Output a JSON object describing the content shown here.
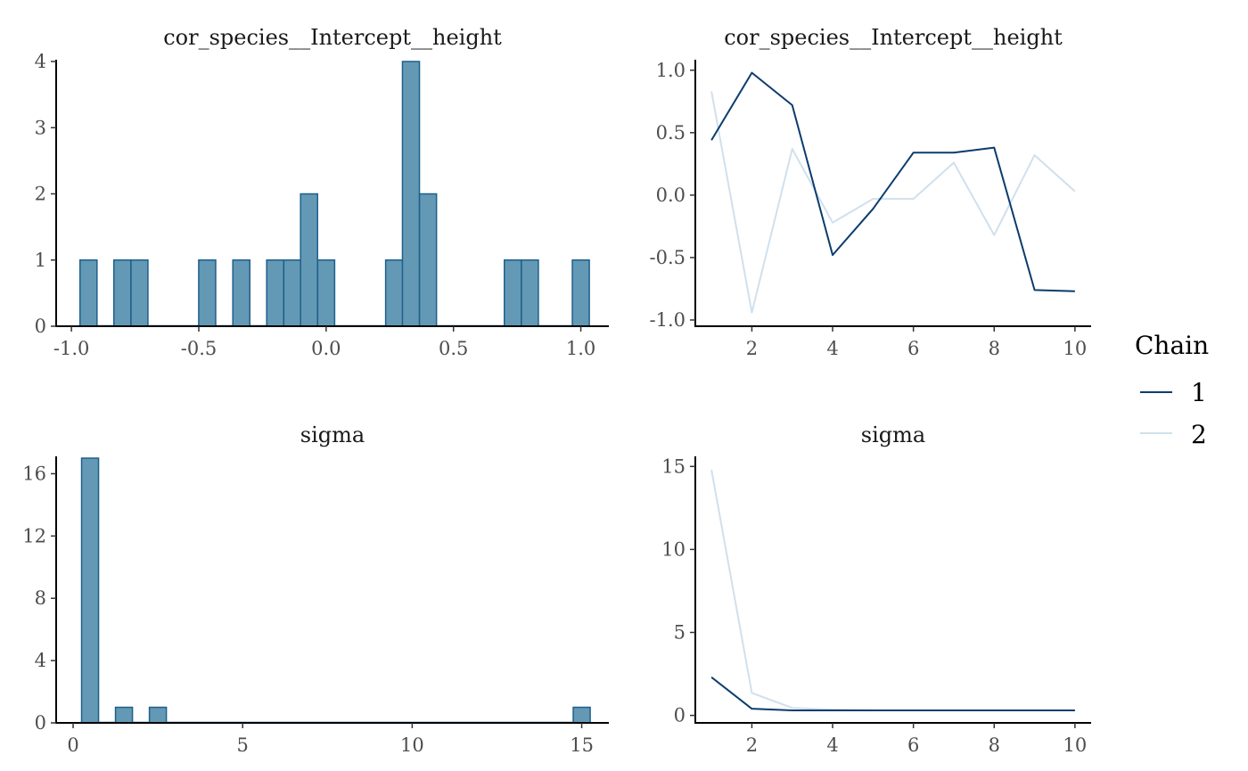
{
  "legend": {
    "title": "Chain",
    "items": [
      {
        "label": "1",
        "color": "#0b3c6e"
      },
      {
        "label": "2",
        "color": "#d0e0ed"
      }
    ]
  },
  "colors": {
    "hist_fill": "#6399b5",
    "hist_stroke": "#1f5f8b",
    "axis": "#000000",
    "tick_text": "#4d4d4d"
  },
  "chart_data": [
    {
      "id": "hist-cor",
      "type": "bar",
      "title": "cor_species__Intercept__height",
      "xlabel": "",
      "ylabel": "",
      "xlim": [
        -1.06,
        1.11
      ],
      "ylim": [
        0,
        4
      ],
      "x_ticks": [
        -1.0,
        -0.5,
        0.0,
        0.5,
        1.0
      ],
      "x_tick_labels": [
        "-1.0",
        "-0.5",
        "0.0",
        "0.5",
        "1.0"
      ],
      "y_ticks": [
        0,
        1,
        2,
        3,
        4
      ],
      "y_tick_labels": [
        "0",
        "1",
        "2",
        "3",
        "4"
      ],
      "bin_width": 0.0667,
      "bins": [
        {
          "x": -0.933,
          "count": 1
        },
        {
          "x": -0.8,
          "count": 1
        },
        {
          "x": -0.733,
          "count": 1
        },
        {
          "x": -0.467,
          "count": 1
        },
        {
          "x": -0.333,
          "count": 1
        },
        {
          "x": -0.2,
          "count": 1
        },
        {
          "x": -0.133,
          "count": 1
        },
        {
          "x": -0.067,
          "count": 2
        },
        {
          "x": 0.0,
          "count": 1
        },
        {
          "x": 0.267,
          "count": 1
        },
        {
          "x": 0.333,
          "count": 4
        },
        {
          "x": 0.4,
          "count": 2
        },
        {
          "x": 0.733,
          "count": 1
        },
        {
          "x": 0.8,
          "count": 1
        },
        {
          "x": 1.0,
          "count": 1
        }
      ]
    },
    {
      "id": "trace-cor",
      "type": "line",
      "title": "cor_species__Intercept__height",
      "xlabel": "",
      "ylabel": "",
      "xlim": [
        0.6,
        10.4
      ],
      "ylim": [
        -1.05,
        1.07
      ],
      "x_ticks": [
        2,
        4,
        6,
        8,
        10
      ],
      "x_tick_labels": [
        "2",
        "4",
        "6",
        "8",
        "10"
      ],
      "y_ticks": [
        -1.0,
        -0.5,
        0.0,
        0.5,
        1.0
      ],
      "y_tick_labels": [
        "-1.0",
        "-0.5",
        "0.0",
        "0.5",
        "1.0"
      ],
      "x": [
        1,
        2,
        3,
        4,
        5,
        6,
        7,
        8,
        9,
        10
      ],
      "series": [
        {
          "name": "1",
          "values": [
            0.44,
            0.98,
            0.72,
            -0.48,
            -0.11,
            0.34,
            0.34,
            0.38,
            -0.76,
            -0.77
          ]
        },
        {
          "name": "2",
          "values": [
            0.83,
            -0.94,
            0.37,
            -0.22,
            -0.03,
            -0.03,
            0.26,
            -0.32,
            0.32,
            0.03
          ]
        }
      ]
    },
    {
      "id": "hist-sigma",
      "type": "bar",
      "title": "sigma",
      "xlabel": "",
      "ylabel": "",
      "xlim": [
        -0.5,
        15.8
      ],
      "ylim": [
        0,
        17
      ],
      "x_ticks": [
        0,
        5,
        10,
        15
      ],
      "x_tick_labels": [
        "0",
        "5",
        "10",
        "15"
      ],
      "y_ticks": [
        0,
        4,
        8,
        12,
        16
      ],
      "y_tick_labels": [
        "0",
        "4",
        "8",
        "12",
        "16"
      ],
      "bin_width": 0.5,
      "bins": [
        {
          "x": 0.5,
          "count": 17
        },
        {
          "x": 1.5,
          "count": 1
        },
        {
          "x": 2.5,
          "count": 1
        },
        {
          "x": 15.0,
          "count": 1
        }
      ]
    },
    {
      "id": "trace-sigma",
      "type": "line",
      "title": "sigma",
      "xlabel": "",
      "ylabel": "",
      "xlim": [
        0.6,
        10.4
      ],
      "ylim": [
        -0.45,
        15.5
      ],
      "x_ticks": [
        2,
        4,
        6,
        8,
        10
      ],
      "x_tick_labels": [
        "2",
        "4",
        "6",
        "8",
        "10"
      ],
      "y_ticks": [
        0,
        5,
        10,
        15
      ],
      "y_tick_labels": [
        "0",
        "5",
        "10",
        "15"
      ],
      "x": [
        1,
        2,
        3,
        4,
        5,
        6,
        7,
        8,
        9,
        10
      ],
      "series": [
        {
          "name": "1",
          "values": [
            2.3,
            0.4,
            0.3,
            0.3,
            0.3,
            0.3,
            0.3,
            0.3,
            0.3,
            0.3
          ]
        },
        {
          "name": "2",
          "values": [
            14.8,
            1.35,
            0.45,
            0.35,
            0.3,
            0.3,
            0.3,
            0.3,
            0.3,
            0.3
          ]
        }
      ]
    }
  ]
}
